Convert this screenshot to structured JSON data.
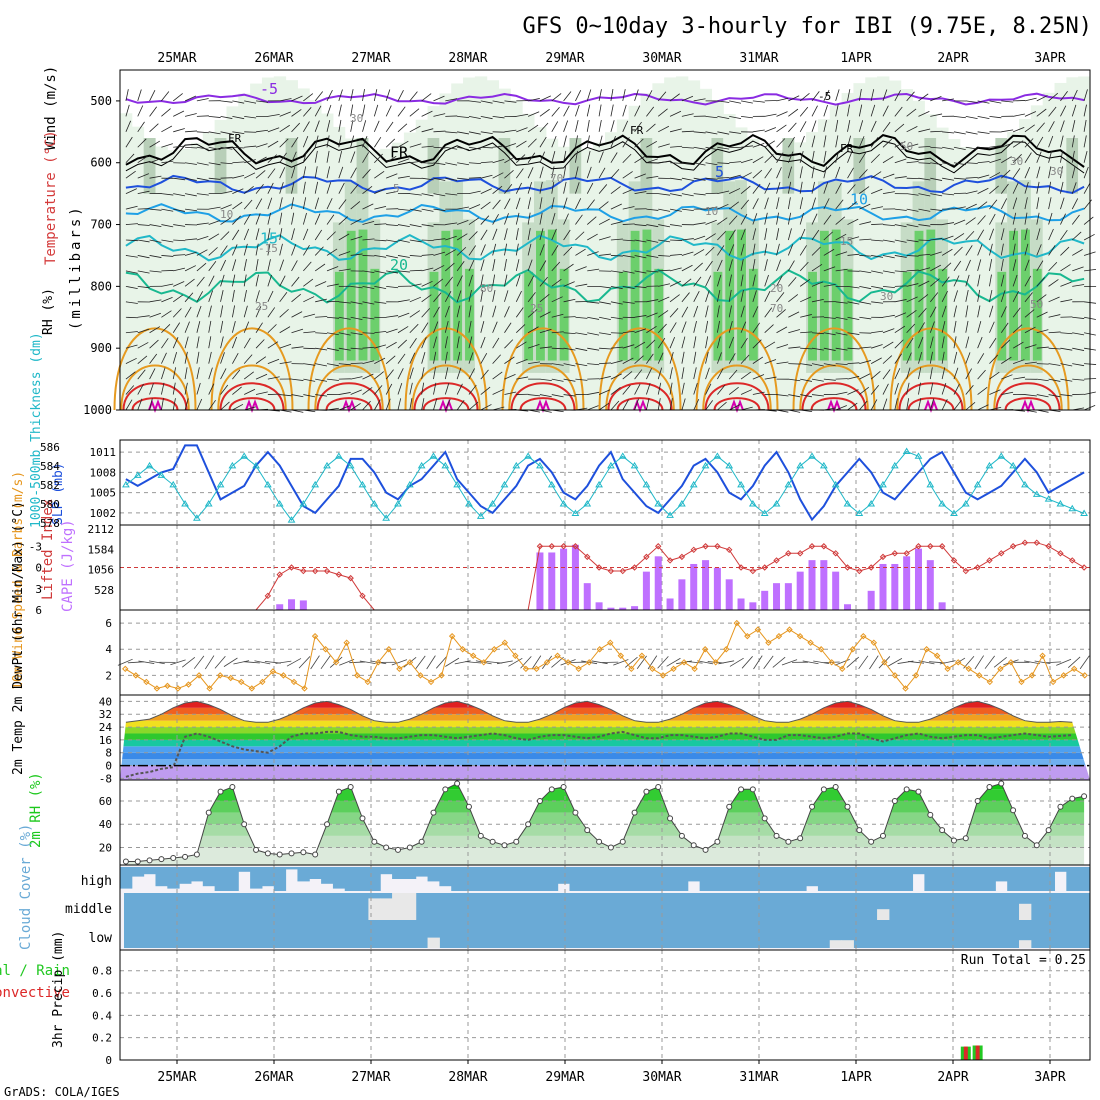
{
  "title": "GFS 0~10day 3-hourly for IBI (9.75E, 8.25N)",
  "footer": "GrADS: COLA/IGES",
  "dates": [
    "25MAR",
    "26MAR",
    "27MAR",
    "28MAR",
    "29MAR",
    "30MAR",
    "31MAR",
    "1APR",
    "2APR",
    "3APR"
  ],
  "colors": {
    "purple": "#8a2be2",
    "black": "#000000",
    "blue": "#1e50dc",
    "lightblue": "#1ea0e6",
    "cyan": "#20b8c8",
    "teal": "#18b890",
    "orange": "#e69a20",
    "red": "#dc2828",
    "magenta": "#d400b0",
    "cape": "#bf70ff",
    "li": "#d03a3a",
    "wind": "#e6961e",
    "rh": "#1cc81c",
    "cloud": "#6aaad6",
    "rain": "#22c822",
    "conv": "#dc2828"
  },
  "chart_data": [
    {
      "type": "heatmap",
      "panel": "upper_air",
      "ylabel_parts": {
        "wind": "Wind (m/s)",
        "temp": "Temperature (°C)",
        "rh": "RH (%)",
        "pressure": "(millibars)"
      },
      "ylim": [
        1000,
        450
      ],
      "yticks": [
        "500",
        "600",
        "700",
        "800",
        "900",
        "1000"
      ],
      "ytick_values": [
        500,
        600,
        700,
        800,
        900,
        1000
      ],
      "isotherms": [
        {
          "label": "-5",
          "base": 497,
          "amp": 6,
          "color_key": "purple"
        },
        {
          "label": "FR",
          "base": 580,
          "amp": 18,
          "color_key": "black"
        },
        {
          "label": "5",
          "base": 635,
          "amp": 10,
          "color_key": "blue"
        },
        {
          "label": "10",
          "base": 682,
          "amp": 10,
          "color_key": "lightblue"
        },
        {
          "label": "15",
          "base": 738,
          "amp": 14,
          "color_key": "cyan"
        },
        {
          "label": "20",
          "base": 800,
          "amp": 18,
          "color_key": "teal"
        }
      ],
      "contour_labels": [
        "-5",
        "FR",
        "FR",
        "FR",
        "5",
        "10",
        "10",
        "-15",
        "15",
        "20",
        "25",
        "25",
        "30",
        "30",
        "30",
        "70",
        "50",
        "80",
        "70",
        "30",
        "50"
      ]
    },
    {
      "type": "line",
      "panel": "thickness_slp",
      "ylabel_left": "1000-500mb Thickness (dm)",
      "ylabel_right": "SLP (mb)",
      "left_ticks": [
        "586",
        "584",
        "582",
        "580",
        "578"
      ],
      "left_range": [
        578,
        586.5
      ],
      "right_ticks": [
        "1011",
        "1008",
        "1005",
        "1002"
      ],
      "right_range": [
        1000.5,
        1012.5
      ],
      "slp": [
        1007,
        1006,
        1007,
        1008,
        1008.5,
        1012,
        1012,
        1008,
        1004,
        1005,
        1006,
        1009,
        1011,
        1009,
        1006,
        1003,
        1002,
        1004,
        1006,
        1010,
        1010,
        1008,
        1005,
        1004,
        1006,
        1007,
        1009,
        1011,
        1007,
        1005,
        1003,
        1002,
        1004,
        1006,
        1009,
        1010,
        1008,
        1005,
        1004,
        1006,
        1009,
        1011,
        1007,
        1005,
        1003,
        1002,
        1004,
        1006,
        1009,
        1010,
        1008,
        1005,
        1004,
        1006,
        1009,
        1011,
        1008,
        1004,
        1001,
        1003,
        1006,
        1008,
        1010,
        1008,
        1005,
        1004,
        1006,
        1008,
        1010,
        1011,
        1008,
        1005,
        1004,
        1005,
        1006,
        1008,
        1010,
        1008,
        1005,
        1006,
        1007,
        1008
      ],
      "thickness": [
        582,
        583,
        584,
        583,
        582,
        580,
        578.5,
        580,
        582,
        584,
        585,
        584,
        582,
        580,
        578.3,
        580,
        582,
        584,
        585,
        584,
        582,
        580,
        578.5,
        580,
        582,
        584,
        585,
        584,
        582,
        580,
        578.7,
        580,
        582,
        584,
        585,
        584,
        582,
        580,
        579,
        580,
        582,
        584,
        585,
        584,
        582,
        580,
        578.8,
        580,
        582,
        584,
        585,
        584,
        582,
        580,
        579,
        580,
        582,
        584,
        585,
        584,
        582,
        580,
        579,
        580,
        582,
        584,
        585.5,
        585,
        582,
        580,
        579,
        580,
        582,
        584,
        585,
        584,
        582,
        581,
        580.5,
        580,
        579.5,
        579
      ]
    },
    {
      "type": "bar",
      "panel": "cape_li",
      "ylabel_left": "Lifted Index",
      "ylabel_right": "CAPE (J/kg)",
      "li_ticks": [
        "-3",
        "0",
        "3",
        "6"
      ],
      "li_range": [
        6,
        -6
      ],
      "cape_ticks": [
        "2112",
        "1584",
        "1056",
        "528"
      ],
      "cape_range": [
        0,
        2112
      ],
      "cape": [
        0,
        0,
        0,
        0,
        0,
        0,
        0,
        0,
        0,
        0,
        0,
        0,
        0,
        150,
        280,
        250,
        0,
        0,
        0,
        0,
        0,
        0,
        0,
        0,
        0,
        0,
        0,
        0,
        0,
        0,
        0,
        0,
        0,
        0,
        0,
        1500,
        1500,
        1600,
        1700,
        700,
        200,
        60,
        60,
        100,
        1000,
        1400,
        300,
        800,
        1200,
        1300,
        1100,
        800,
        300,
        200,
        500,
        700,
        700,
        1000,
        1300,
        1300,
        1000,
        150,
        0,
        500,
        1200,
        1200,
        1400,
        1600,
        1300,
        200,
        0,
        0,
        0,
        0,
        0,
        0,
        0,
        0,
        0,
        0,
        0,
        0
      ],
      "li": [
        6,
        6,
        6,
        6,
        6,
        6,
        6,
        6,
        6,
        6,
        6,
        6,
        4,
        1,
        0,
        0.5,
        0.5,
        0.5,
        1,
        1.5,
        4,
        6,
        6,
        6,
        6,
        6,
        6,
        6,
        6,
        6,
        6,
        6,
        6,
        6,
        6,
        -3,
        -3,
        -3,
        -3,
        -1.5,
        0,
        0.5,
        0.5,
        0,
        -1.5,
        -3,
        -1,
        -1.5,
        -2.5,
        -3,
        -3,
        -2.5,
        0,
        0.5,
        0,
        -1,
        -2,
        -2,
        -3,
        -3,
        -2,
        0,
        0.5,
        0,
        -1.5,
        -2,
        -2,
        -3,
        -3,
        -3,
        -1,
        0.5,
        0,
        -1,
        -2,
        -3,
        -3.5,
        -3.5,
        -3,
        -2,
        -1,
        0
      ]
    },
    {
      "type": "line",
      "panel": "wind10",
      "ylabel": "10m Wind Speed & Barbs (m/s)",
      "yticks": [
        "6",
        "4",
        "2"
      ],
      "ylim": [
        0.5,
        7
      ],
      "speed": [
        2.5,
        2,
        1.5,
        1,
        1.2,
        1,
        1.3,
        2,
        1,
        2,
        1.8,
        1.5,
        1,
        1.5,
        2.3,
        2,
        1.5,
        1,
        5,
        4,
        3,
        4.5,
        2,
        1.5,
        3,
        4,
        2.5,
        3,
        2,
        1.5,
        2,
        5,
        4,
        3.5,
        3,
        4,
        4.5,
        3.5,
        2.5,
        2.5,
        3,
        3.5,
        3,
        2.5,
        3,
        4,
        4.5,
        3.5,
        2.5,
        3.5,
        2.5,
        2,
        2.5,
        3,
        2.5,
        4,
        3,
        4,
        6,
        5,
        5.5,
        4.5,
        5,
        5.5,
        5,
        4.5,
        4,
        3,
        2.5,
        4,
        5,
        4.5,
        3,
        2,
        1,
        2,
        4,
        3.5,
        2.5,
        3,
        2.5,
        2,
        1.5,
        2.5,
        3,
        1.5,
        2,
        3.5,
        1.5,
        2,
        2.5,
        2
      ]
    },
    {
      "type": "area",
      "panel": "temp2m",
      "ylabel": "2m Temp 2m DewPt (6hr Min/Max) (°C)",
      "yticks": [
        "40",
        "32",
        "24",
        "16",
        "8",
        "0",
        "-8"
      ],
      "ylim": [
        -9,
        44
      ],
      "temp": [
        27,
        28,
        29,
        32,
        36,
        39,
        40,
        38,
        35,
        31,
        28,
        27,
        27,
        29,
        32,
        36,
        39,
        40,
        38,
        35,
        31,
        28,
        27,
        27,
        29,
        32,
        36,
        39,
        40,
        38,
        35,
        31,
        28,
        27,
        27,
        29,
        32,
        36,
        39,
        40,
        38,
        35,
        31,
        28,
        27,
        27,
        29,
        32,
        36,
        39,
        40,
        38,
        35,
        31,
        28,
        27,
        27,
        29,
        32,
        36,
        39,
        40,
        38,
        35,
        31,
        28,
        27,
        27,
        29,
        32,
        36,
        39,
        40,
        38,
        35,
        31,
        28,
        27,
        27,
        27.5,
        27
      ],
      "dewpt": [
        -7,
        -5,
        -4,
        -2,
        -1,
        18,
        20,
        18,
        15,
        12,
        10,
        9,
        8,
        12,
        18,
        20,
        20,
        21,
        21,
        19,
        18,
        18,
        17,
        17,
        18,
        19,
        19,
        18,
        17,
        18,
        19,
        20,
        19,
        17,
        16,
        18,
        19,
        19,
        18,
        17,
        18,
        20,
        21,
        19,
        17,
        17,
        19,
        19,
        18,
        17,
        18,
        20,
        20,
        18,
        16,
        16,
        19,
        19,
        18,
        17,
        18,
        20,
        20,
        17,
        15,
        17,
        19,
        20,
        18,
        17,
        18,
        19,
        19,
        17,
        18,
        19,
        20,
        19,
        18,
        18.5,
        19
      ]
    },
    {
      "type": "area",
      "panel": "rh2m",
      "ylabel": "2m RH (%)",
      "yticks": [
        "60",
        "40",
        "20"
      ],
      "ylim": [
        5,
        78
      ],
      "rh": [
        8,
        8,
        9,
        10,
        11,
        12,
        14,
        50,
        68,
        72,
        40,
        18,
        15,
        14,
        15,
        16,
        14,
        40,
        68,
        72,
        45,
        25,
        20,
        18,
        20,
        25,
        50,
        70,
        75,
        55,
        30,
        25,
        22,
        25,
        40,
        60,
        70,
        72,
        50,
        35,
        25,
        20,
        25,
        50,
        68,
        72,
        45,
        30,
        22,
        18,
        25,
        55,
        70,
        70,
        45,
        30,
        25,
        28,
        55,
        70,
        72,
        55,
        35,
        25,
        30,
        60,
        70,
        68,
        48,
        35,
        26,
        28,
        60,
        72,
        75,
        52,
        30,
        22,
        35,
        55,
        62,
        64
      ]
    },
    {
      "type": "bar",
      "panel": "cloud",
      "ylabel": "Cloud Cover (%)",
      "levels": [
        "high",
        "middle",
        "low"
      ],
      "high": [
        90,
        40,
        30,
        80,
        90,
        70,
        60,
        80,
        100,
        100,
        20,
        90,
        80,
        100,
        10,
        60,
        50,
        70,
        90,
        100,
        100,
        100,
        30,
        50,
        50,
        40,
        60,
        80,
        100,
        100,
        100,
        100,
        100,
        100,
        100,
        100,
        100,
        70,
        100,
        100,
        100,
        100,
        100,
        100,
        100,
        100,
        100,
        100,
        60,
        100,
        100,
        100,
        100,
        100,
        100,
        100,
        100,
        100,
        80,
        100,
        100,
        100,
        100,
        100,
        100,
        100,
        100,
        30,
        100,
        100,
        100,
        100,
        100,
        100,
        60,
        100,
        100,
        100,
        100,
        20,
        100,
        100
      ],
      "middle": [
        0,
        0,
        0,
        0,
        0,
        0,
        0,
        0,
        0,
        0,
        0,
        0,
        0,
        0,
        0,
        0,
        0,
        0,
        0,
        0,
        0,
        80,
        80,
        100,
        100,
        0,
        0,
        0,
        0,
        0,
        0,
        0,
        0,
        0,
        0,
        0,
        0,
        0,
        0,
        0,
        0,
        0,
        0,
        0,
        0,
        0,
        0,
        0,
        0,
        0,
        0,
        0,
        0,
        0,
        0,
        0,
        0,
        0,
        0,
        0,
        0,
        0,
        0,
        0,
        40,
        0,
        0,
        0,
        0,
        0,
        0,
        0,
        0,
        0,
        0,
        0,
        60,
        0,
        0,
        0,
        0,
        0
      ],
      "low": [
        0,
        0,
        0,
        0,
        0,
        0,
        0,
        0,
        0,
        0,
        0,
        0,
        0,
        0,
        0,
        0,
        0,
        0,
        0,
        0,
        0,
        0,
        0,
        0,
        0,
        0,
        40,
        0,
        0,
        0,
        0,
        0,
        0,
        0,
        0,
        0,
        0,
        0,
        0,
        0,
        0,
        0,
        0,
        0,
        0,
        0,
        0,
        0,
        0,
        0,
        0,
        0,
        0,
        0,
        0,
        0,
        0,
        0,
        0,
        0,
        30,
        30,
        0,
        0,
        0,
        0,
        0,
        0,
        0,
        0,
        0,
        0,
        0,
        0,
        0,
        0,
        30,
        0,
        0,
        0,
        0,
        0
      ]
    },
    {
      "type": "bar",
      "panel": "precip",
      "ylabel": "Total / Rain Convective 3hr Precip (mm)",
      "ylabel_total": "Total / Rain",
      "ylabel_conv": "Convective",
      "ylabel_axis": "3hr Precip (mm)",
      "yticks": [
        "0.8",
        "0.6",
        "0.4",
        "0.2",
        "0"
      ],
      "ylim": [
        0,
        0.95
      ],
      "run_total_label": "Run Total = 0.25",
      "bars": [
        {
          "step": 71,
          "total": 0.12,
          "conv": 0.12
        },
        {
          "step": 72,
          "total": 0.13,
          "conv": 0.13
        }
      ]
    }
  ]
}
